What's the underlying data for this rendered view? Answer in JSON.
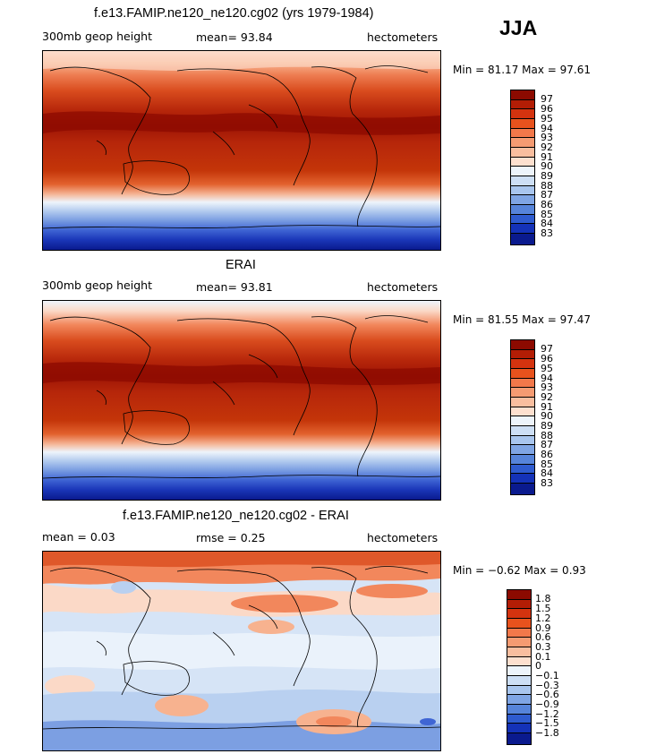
{
  "season": "JJA",
  "panels": [
    {
      "title": "f.e13.FAMIP.ne120_ne120.cg02 (yrs 1979-1984)",
      "left_label": "300mb geop height",
      "mid_label": "mean=  93.84",
      "units": "hectometers",
      "minmax": "Min =  81.17 Max =  97.61",
      "colorbar": {
        "labels": [
          "97",
          "96",
          "95",
          "94",
          "93",
          "92",
          "91",
          "90",
          "89",
          "88",
          "87",
          "86",
          "85",
          "84",
          "83"
        ],
        "colors": [
          "#8c0a00",
          "#b31d05",
          "#d4330f",
          "#e8521d",
          "#f2784a",
          "#f59b72",
          "#f9be9f",
          "#fde0cf",
          "#edf4fb",
          "#cddff5",
          "#a9c6ee",
          "#7fa5e4",
          "#5684da",
          "#2e5bcf",
          "#1432b8",
          "#0a1a8e"
        ]
      },
      "field": "height"
    },
    {
      "title": "ERAI",
      "left_label": "300mb geop height",
      "mid_label": "mean=  93.81",
      "units": "hectometers",
      "minmax": "Min =  81.55 Max =  97.47",
      "colorbar": {
        "labels": [
          "97",
          "96",
          "95",
          "94",
          "93",
          "92",
          "91",
          "90",
          "89",
          "88",
          "87",
          "86",
          "85",
          "84",
          "83"
        ],
        "colors": [
          "#8c0a00",
          "#b31d05",
          "#d4330f",
          "#e8521d",
          "#f2784a",
          "#f59b72",
          "#f9be9f",
          "#fde0cf",
          "#edf4fb",
          "#cddff5",
          "#a9c6ee",
          "#7fa5e4",
          "#5684da",
          "#2e5bcf",
          "#1432b8",
          "#0a1a8e"
        ]
      },
      "field": "height"
    },
    {
      "title": "f.e13.FAMIP.ne120_ne120.cg02 - ERAI",
      "left_label": "mean =    0.03",
      "mid_label": "rmse =    0.25",
      "units": "hectometers",
      "minmax": "Min =  −0.62 Max =    0.93",
      "colorbar": {
        "labels": [
          "1.8",
          "1.5",
          "1.2",
          "0.9",
          "0.6",
          "0.3",
          "0.1",
          "0",
          "−0.1",
          "−0.3",
          "−0.6",
          "−0.9",
          "−1.2",
          "−1.5",
          "−1.8"
        ],
        "colors": [
          "#8c0a00",
          "#b31d05",
          "#d4330f",
          "#e8521d",
          "#f2784a",
          "#f59b72",
          "#f9be9f",
          "#fde0cf",
          "#edf4fb",
          "#cddff5",
          "#a9c6ee",
          "#7fa5e4",
          "#5684da",
          "#2e5bcf",
          "#1432b8",
          "#0a1a8e"
        ]
      },
      "field": "difference"
    }
  ]
}
